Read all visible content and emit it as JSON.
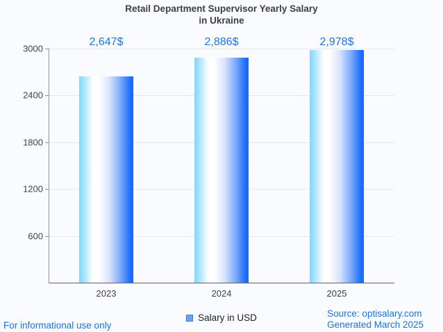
{
  "title": {
    "line1": "Retail Department Supervisor Yearly Salary",
    "line2": "in Ukraine"
  },
  "chart_data": {
    "type": "bar",
    "title": "Retail Department Supervisor Yearly Salary in Ukraine",
    "categories": [
      "2023",
      "2024",
      "2025"
    ],
    "values": [
      2647,
      2886,
      2978
    ],
    "value_labels": [
      "2,647$",
      "2,886$",
      "2,978$"
    ],
    "xlabel": "",
    "ylabel": "",
    "ylim": [
      0,
      3000
    ],
    "yticks": [
      600,
      1200,
      1800,
      2400,
      3000
    ],
    "grid": true,
    "legend_position": "bottom",
    "series_name": "Salary in USD",
    "bar_fill_gradient": [
      "#85d5fa",
      "#ffffff",
      "#1266fb"
    ],
    "value_label_color": "#1a73e8"
  },
  "legend": {
    "label": "Salary in USD",
    "marker_fill": "#66a5f6",
    "marker_border": "#3d77d8"
  },
  "footer": {
    "left_note": "For informational use only",
    "source_line": "Source: optisalary.com",
    "generated_line": "Generated March 2025"
  },
  "colors": {
    "background": "#fafbfe",
    "title_text": "#3c4043",
    "axis_text": "#424242",
    "gridline": "#e4e6e9",
    "y_axis_line": "#8f9398",
    "x_axis_line": "#5f6368",
    "accent_blue": "#1a73e8"
  }
}
